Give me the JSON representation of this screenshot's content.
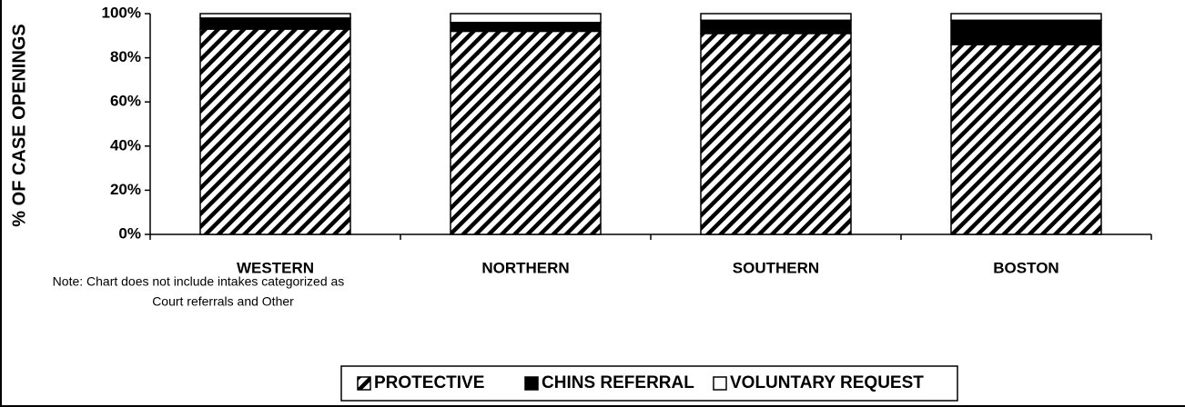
{
  "chart_data": {
    "type": "stacked_bar",
    "ylabel": "% OF CASE OPENINGS",
    "categories": [
      "WESTERN",
      "NORTHERN",
      "SOUTHERN",
      "BOSTON"
    ],
    "series": [
      {
        "name": "PROTECTIVE",
        "color": "#000000",
        "pattern": "diagonal-hatch",
        "values": [
          93,
          92,
          91,
          86
        ]
      },
      {
        "name": "CHINS REFERRAL",
        "color": "#000000",
        "values": [
          5,
          4,
          6,
          11
        ]
      },
      {
        "name": "VOLUNTARY REQUEST",
        "color": "#ffffff",
        "values": [
          2,
          4,
          3,
          3
        ]
      }
    ],
    "ylim": [
      0,
      100
    ],
    "yticks": [
      {
        "value": 0,
        "label": "0%"
      },
      {
        "value": 20,
        "label": "20%"
      },
      {
        "value": 40,
        "label": "40%"
      },
      {
        "value": 60,
        "label": "60%"
      },
      {
        "value": 80,
        "label": "80%"
      },
      {
        "value": 100,
        "label": "100%"
      }
    ],
    "grid": false,
    "legend": "bottom",
    "annotations": [
      "Note: Chart does not include intakes categorized as",
      "Court referrals and Other"
    ]
  }
}
